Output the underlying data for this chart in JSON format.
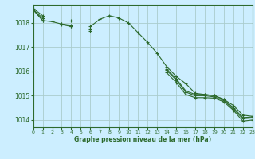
{
  "title": "Graphe pression niveau de la mer (hPa)",
  "background_color": "#cceeff",
  "grid_color": "#aacccc",
  "line_color": "#2d6a2d",
  "xlim": [
    0,
    23
  ],
  "ylim": [
    1013.7,
    1018.75
  ],
  "yticks": [
    1014,
    1015,
    1016,
    1017,
    1018
  ],
  "xticks": [
    0,
    1,
    2,
    3,
    4,
    5,
    6,
    7,
    8,
    9,
    10,
    11,
    12,
    13,
    14,
    15,
    16,
    17,
    18,
    19,
    20,
    21,
    22,
    23
  ],
  "line1": [
    1018.6,
    1018.3,
    null,
    null,
    1018.1,
    null,
    1017.85,
    1018.15,
    1018.3,
    1018.2,
    1018.0,
    1017.6,
    1017.2,
    1016.75,
    1016.2,
    1015.8,
    1015.5,
    1015.1,
    1015.05,
    1015.0,
    1014.85,
    1014.6,
    1014.2,
    1014.15
  ],
  "line2": [
    1018.55,
    1018.2,
    null,
    1017.95,
    1017.9,
    null,
    1017.75,
    null,
    null,
    null,
    null,
    null,
    null,
    null,
    1015.95,
    1015.55,
    1015.05,
    1014.92,
    1014.92,
    1014.9,
    1014.75,
    1014.4,
    1013.95,
    1014.0
  ],
  "line3": [
    1018.55,
    1018.1,
    1018.05,
    1017.95,
    1017.88,
    null,
    1017.72,
    null,
    null,
    null,
    null,
    null,
    null,
    null,
    1016.05,
    1015.65,
    1015.15,
    1015.0,
    1015.0,
    1014.95,
    1014.8,
    1014.45,
    1014.05,
    1014.08
  ],
  "line4": [
    1018.55,
    1018.1,
    null,
    1017.93,
    1017.85,
    null,
    1017.68,
    null,
    null,
    null,
    null,
    null,
    null,
    null,
    1016.1,
    1015.7,
    1015.2,
    1015.05,
    1015.05,
    1015.0,
    1014.85,
    1014.5,
    1014.1,
    1014.12
  ]
}
